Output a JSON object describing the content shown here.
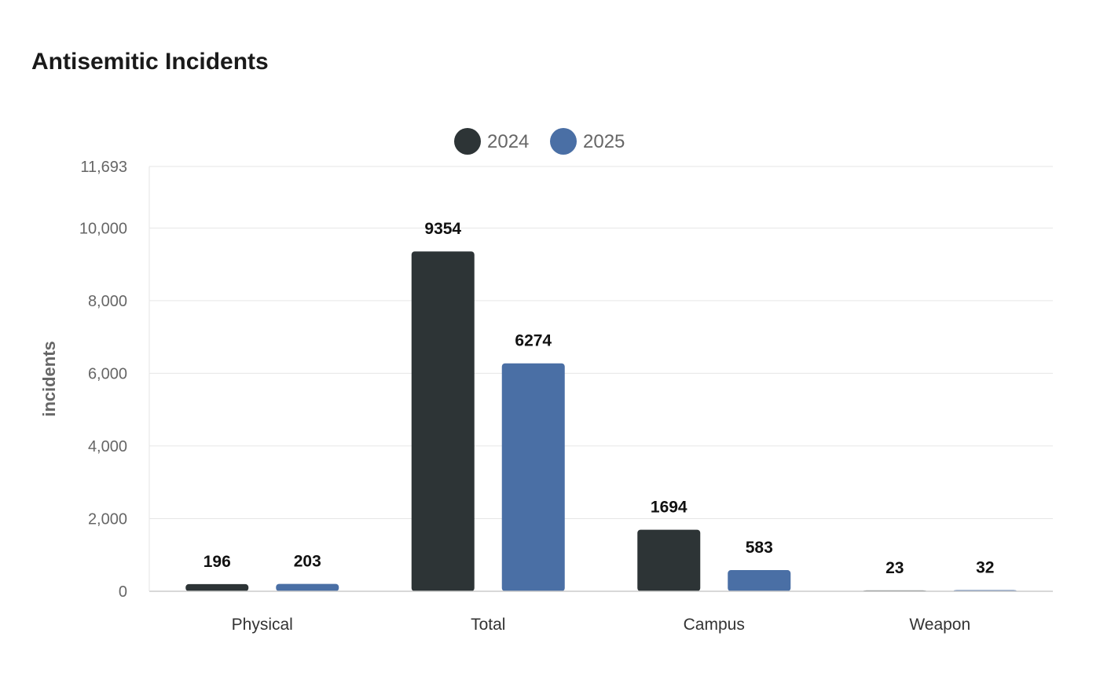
{
  "chart_data": {
    "type": "bar",
    "title": "Antisemitic Incidents",
    "ylabel": "incidents",
    "xlabel": "",
    "categories": [
      "Physical",
      "Total",
      "Campus",
      "Weapon"
    ],
    "series": [
      {
        "name": "2024",
        "color": "#2d3436",
        "values": [
          196,
          9354,
          1694,
          23
        ]
      },
      {
        "name": "2025",
        "color": "#4a6fa5",
        "values": [
          203,
          6274,
          583,
          32
        ]
      }
    ],
    "ylim": [
      0,
      11693
    ],
    "yticks": [
      0,
      2000,
      4000,
      6000,
      8000,
      10000,
      11693
    ],
    "ytick_labels": [
      "0",
      "2,000",
      "4,000",
      "6,000",
      "8,000",
      "10,000",
      "11,693"
    ],
    "grid": true,
    "legend": "top-center",
    "data_labels": true
  }
}
